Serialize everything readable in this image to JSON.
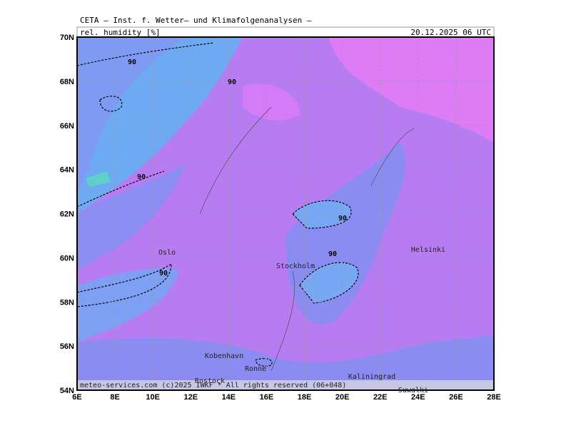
{
  "header": {
    "title": "CETA — Inst. f. Wetter— und Klimafolgenanalysen —",
    "variable": "rel. humidity [%]",
    "valid_time": "20.12.2025 06 UTC"
  },
  "axes": {
    "latitudes": [
      "70N",
      "68N",
      "66N",
      "64N",
      "62N",
      "60N",
      "58N",
      "56N",
      "54N"
    ],
    "longitudes": [
      "6E",
      "8E",
      "10E",
      "12E",
      "14E",
      "16E",
      "18E",
      "20E",
      "22E",
      "24E",
      "26E",
      "28E"
    ]
  },
  "places": [
    "Oslo",
    "Stockholm",
    "Helsinki",
    "Kobenhavn",
    "Ronne",
    "Kaliningrad",
    "Rostock",
    "Suwalki"
  ],
  "contour_labels": [
    90,
    90,
    90,
    90,
    90,
    90
  ],
  "footer": "meteo-services.com (c)2025 IWKF * All rights reserved (06+048)"
}
